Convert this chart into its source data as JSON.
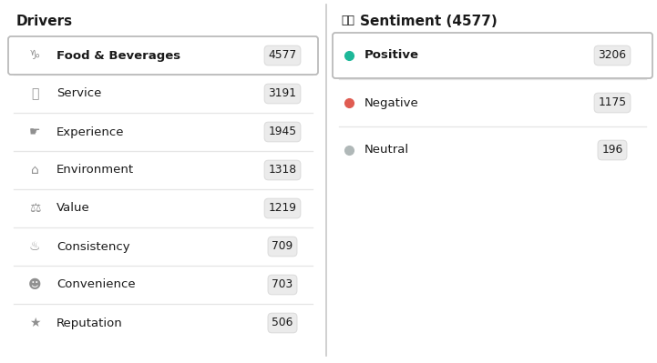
{
  "bg_color": "#ffffff",
  "divider_color": "#c8c8c8",
  "left_title": "Drivers",
  "drivers": [
    {
      "label": "Food & Beverages",
      "count": "4577",
      "selected": true
    },
    {
      "label": "Service",
      "count": "3191",
      "selected": false
    },
    {
      "label": "Experience",
      "count": "1945",
      "selected": false
    },
    {
      "label": "Environment",
      "count": "1318",
      "selected": false
    },
    {
      "label": "Value",
      "count": "1219",
      "selected": false
    },
    {
      "label": "Consistency",
      "count": "709",
      "selected": false
    },
    {
      "label": "Convenience",
      "count": "703",
      "selected": false
    },
    {
      "label": "Reputation",
      "count": "506",
      "selected": false
    }
  ],
  "sentiments": [
    {
      "label": "Positive",
      "count": "3206",
      "color": "#1db899",
      "selected": true
    },
    {
      "label": "Negative",
      "count": "1175",
      "color": "#e05c52",
      "selected": false
    },
    {
      "label": "Neutral",
      "count": "196",
      "color": "#b0b8b8",
      "selected": false
    }
  ],
  "badge_bg": "#ebebeb",
  "badge_edge": "#dddddd",
  "text_color": "#1a1a1a",
  "muted_color": "#555555",
  "selected_edge": "#bbbbbb",
  "separator_color": "#e5e5e5",
  "label_fontsize": 9.5,
  "title_fontsize": 11,
  "badge_fontsize": 8.8,
  "icon_fontsize": 10
}
